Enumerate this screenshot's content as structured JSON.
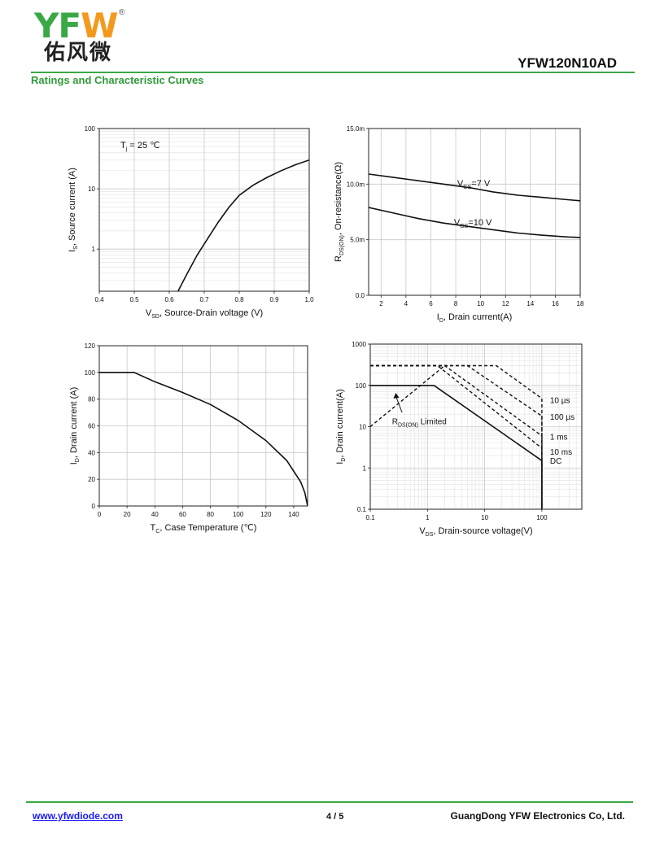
{
  "header": {
    "logo_latin": "YFW",
    "logo_registered": "®",
    "logo_chinese": "佑风微",
    "part_number": "YFW120N10AD",
    "section_title": "Ratings and Characteristic Curves"
  },
  "footer": {
    "url": "www.yfwdiode.com",
    "page": "4 / 5",
    "company": "GuangDong YFW Electronics Co, Ltd."
  },
  "colors": {
    "brand_green": "#3aa845",
    "logo_orange": "#f39a1e",
    "link_blue": "#1a1aff"
  },
  "chart_data": [
    {
      "type": "line",
      "ylabel_parts": [
        "I",
        "S",
        ", Source current (A)"
      ],
      "xlabel_parts": [
        "V",
        "SD",
        ", Source-Drain voltage (V)"
      ],
      "annotation_parts": [
        "T",
        "j",
        " = 25 ℃"
      ],
      "x_ticks": [
        "0.4",
        "0.5",
        "0.6",
        "0.7",
        "0.8",
        "0.9",
        "1.0"
      ],
      "y_ticks": [
        "1",
        "10",
        "100"
      ],
      "xlim": [
        0.4,
        1.0
      ],
      "ylim": [
        0.2,
        100
      ],
      "y_scale": "log",
      "grid": true,
      "series": [
        {
          "x": [
            0.625,
            0.65,
            0.68,
            0.71,
            0.74,
            0.77,
            0.8,
            0.84,
            0.88,
            0.92,
            0.96,
            1.0
          ],
          "y": [
            0.2,
            0.38,
            0.8,
            1.5,
            2.8,
            4.9,
            7.8,
            11.5,
            15.5,
            20,
            25,
            30
          ]
        }
      ]
    },
    {
      "type": "line",
      "ylabel_parts": [
        "R",
        "DS(ON)",
        ", On-resistance(Ω)"
      ],
      "xlabel_parts": [
        "I",
        "D",
        ", Drain current(A)"
      ],
      "x_ticks": [
        "2",
        "4",
        "6",
        "8",
        "10",
        "12",
        "14",
        "16",
        "18"
      ],
      "y_ticks": [
        "0.0",
        "5.0m",
        "10.0m",
        "15.0m"
      ],
      "xlim": [
        1,
        18
      ],
      "ylim": [
        0,
        15
      ],
      "grid": true,
      "series": [
        {
          "name_parts": [
            "V",
            "GS",
            "=7 V"
          ],
          "x": [
            1,
            3,
            5,
            7,
            9,
            11,
            13,
            15,
            17,
            18
          ],
          "y": [
            10.9,
            10.6,
            10.3,
            10.0,
            9.7,
            9.3,
            9.0,
            8.8,
            8.6,
            8.5
          ]
        },
        {
          "name_parts": [
            "V",
            "GS",
            "=10 V"
          ],
          "x": [
            1,
            3,
            5,
            7,
            9,
            11,
            13,
            15,
            17,
            18
          ],
          "y": [
            7.9,
            7.4,
            6.9,
            6.5,
            6.2,
            5.9,
            5.6,
            5.4,
            5.25,
            5.2
          ]
        }
      ]
    },
    {
      "type": "line",
      "ylabel_parts": [
        "I",
        "D",
        ", Drain current (A)"
      ],
      "xlabel_parts": [
        "T",
        "C",
        ", Case Temperature (℃)"
      ],
      "x_ticks": [
        "0",
        "20",
        "40",
        "60",
        "80",
        "100",
        "120",
        "140"
      ],
      "y_ticks": [
        "0",
        "20",
        "40",
        "60",
        "80",
        "100",
        "120"
      ],
      "xlim": [
        0,
        150
      ],
      "ylim": [
        0,
        120
      ],
      "grid": true,
      "series": [
        {
          "x": [
            0,
            25,
            40,
            60,
            80,
            100,
            120,
            135,
            145,
            148,
            150
          ],
          "y": [
            100,
            100,
            93,
            85,
            76,
            64,
            49,
            34,
            18,
            10,
            0
          ]
        }
      ]
    },
    {
      "type": "line",
      "ylabel_parts": [
        "I",
        "D",
        ", Drain current(A)"
      ],
      "xlabel_parts": [
        "V",
        "DS",
        ", Drain-source voltage(V)"
      ],
      "x_ticks": [
        "0.1",
        "1",
        "10",
        "100"
      ],
      "y_ticks": [
        "0.1",
        "1",
        "10",
        "100",
        "1000"
      ],
      "xlim": [
        0.1,
        500
      ],
      "ylim": [
        0.1,
        1000
      ],
      "x_scale": "log",
      "y_scale": "log",
      "grid": true,
      "rds_label_parts": [
        "R",
        "DS(ON)",
        " Limited"
      ],
      "series": [
        {
          "name": "DC",
          "style": "solid",
          "x": [
            0.1,
            1.3,
            100,
            100
          ],
          "y": [
            100,
            100,
            1.5,
            0.1
          ]
        },
        {
          "name": "10 ms",
          "style": "dashed",
          "x": [
            0.1,
            1.5,
            100,
            100
          ],
          "y": [
            300,
            300,
            3,
            0.1
          ]
        },
        {
          "name": "1 ms",
          "style": "dashed",
          "x": [
            0.1,
            2.0,
            100,
            100
          ],
          "y": [
            300,
            300,
            6,
            0.1
          ]
        },
        {
          "name": "100 µs",
          "style": "dashed",
          "x": [
            0.1,
            5.0,
            100,
            100
          ],
          "y": [
            300,
            300,
            18,
            0.1
          ]
        },
        {
          "name": "10 µs",
          "style": "dashed",
          "x": [
            0.1,
            16,
            100,
            100
          ],
          "y": [
            300,
            300,
            48,
            0.1
          ]
        },
        {
          "name": "R_DS(ON) Limited",
          "style": "dashed",
          "x": [
            0.1,
            2.0
          ],
          "y": [
            10,
            300
          ]
        }
      ]
    }
  ]
}
